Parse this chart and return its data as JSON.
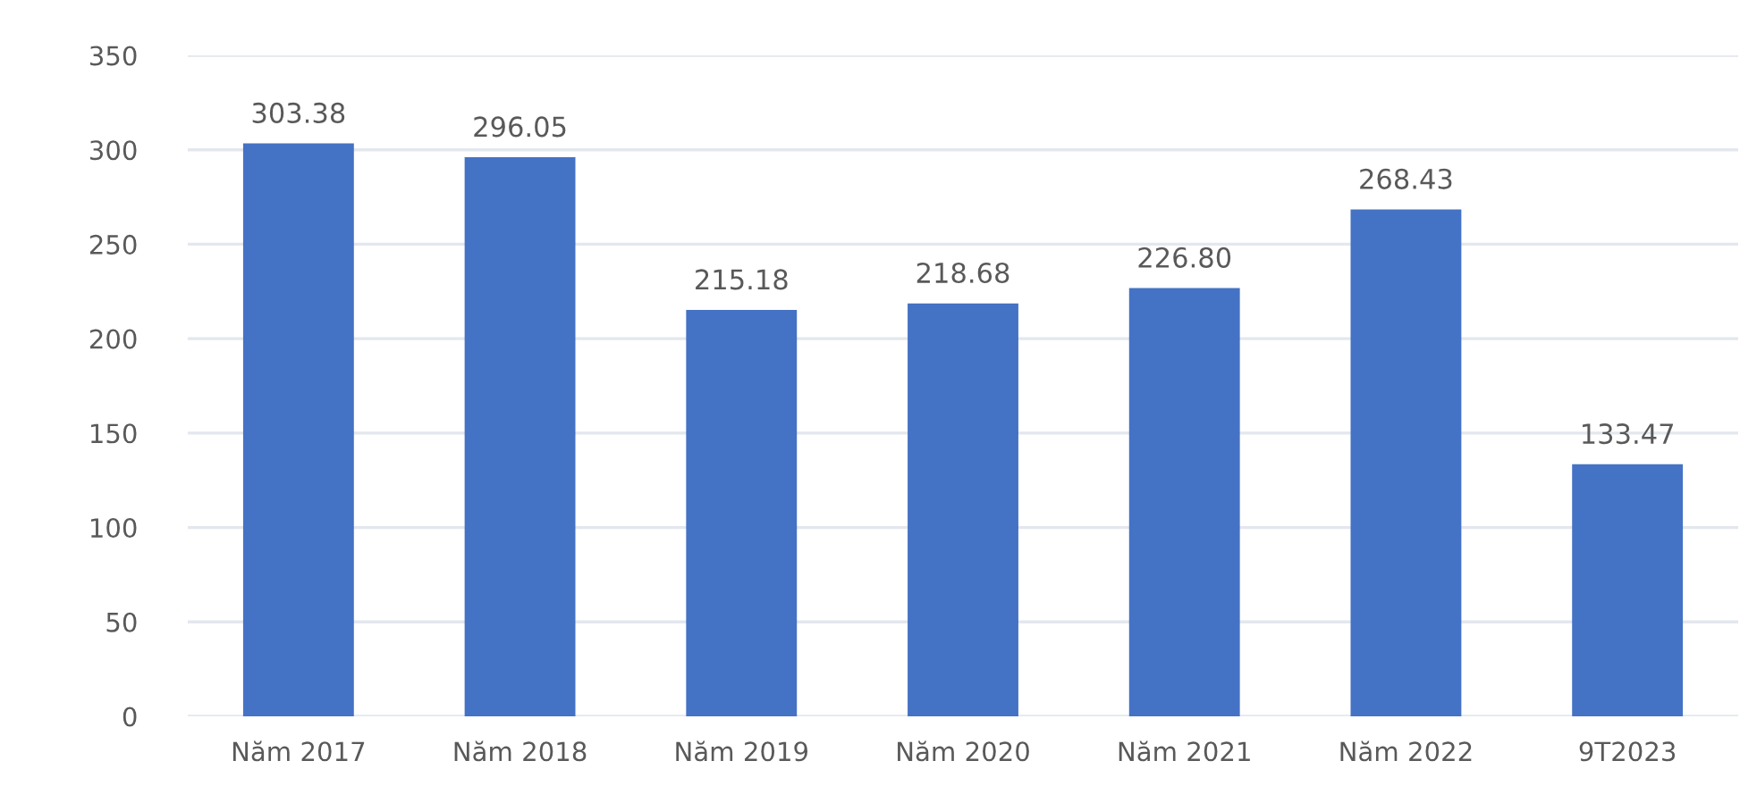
{
  "chart_data": {
    "type": "bar",
    "categories": [
      "Năm 2017",
      "Năm 2018",
      "Năm 2019",
      "Năm 2020",
      "Năm 2021",
      "Năm 2022",
      "9T2023"
    ],
    "values": [
      303.38,
      296.05,
      215.18,
      218.68,
      226.8,
      268.43,
      133.47
    ],
    "value_labels": [
      "303.38",
      "296.05",
      "215.18",
      "218.68",
      "226.80",
      "268.43",
      "133.47"
    ],
    "color": "#4472c4",
    "ylim": [
      0,
      350
    ],
    "yticks": [
      0,
      50,
      100,
      150,
      200,
      250,
      300,
      350
    ],
    "grid": "y",
    "legend": false
  }
}
